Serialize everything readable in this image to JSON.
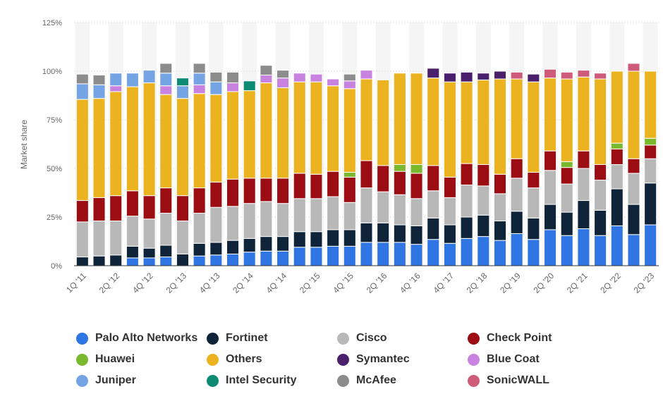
{
  "chart_data": {
    "type": "bar",
    "stacked": true,
    "ylabel": "Market share",
    "y_ticks": [
      "0%",
      "25%",
      "50%",
      "75%",
      "100%",
      "125%"
    ],
    "ylim": [
      0,
      125
    ],
    "grid": true,
    "legend_position": "bottom",
    "x_tick_labels": [
      "1Q '11",
      "2Q '12",
      "4Q '12",
      "2Q '13",
      "4Q '13",
      "2Q '14",
      "4Q '14",
      "2Q '15",
      "4Q '15",
      "2Q '16",
      "4Q '16",
      "4Q '17",
      "2Q '18",
      "2Q '19",
      "2Q '20",
      "2Q '21",
      "2Q '22",
      "2Q '23"
    ],
    "x_tick_positions": [
      0,
      2,
      4,
      6,
      8,
      10,
      12,
      14,
      16,
      18,
      20,
      22,
      24,
      26,
      28,
      30,
      32,
      34
    ],
    "bar_count": 35,
    "series": [
      {
        "name": "Palo Alto Networks",
        "color": "#2f76e4",
        "values": [
          0,
          0,
          0,
          4,
          4,
          4.5,
          0,
          5,
          5.5,
          6,
          7,
          7.5,
          7.5,
          9.5,
          9.5,
          10,
          10,
          12,
          12,
          12,
          11,
          13.5,
          11.5,
          14,
          15,
          13,
          16.5,
          13.5,
          18.5,
          15.5,
          19,
          15.5,
          20.5,
          16,
          21
        ]
      },
      {
        "name": "Fortinet",
        "color": "#0f2438",
        "values": [
          4.5,
          5,
          5.5,
          6,
          5,
          6,
          6,
          6.5,
          6.5,
          7,
          7,
          7.5,
          7.5,
          8,
          8,
          8.5,
          8.5,
          10,
          10,
          9,
          9.5,
          11,
          9.5,
          11,
          11,
          10,
          11.5,
          11,
          13,
          12,
          14.5,
          13,
          19,
          15.5,
          21.5
        ]
      },
      {
        "name": "Cisco",
        "color": "#b8b8b8",
        "values": [
          18,
          18,
          17.5,
          15.5,
          15,
          16.5,
          17,
          15.5,
          18,
          17.5,
          18,
          18,
          17,
          17,
          17,
          17,
          14,
          18,
          16,
          15.5,
          14,
          14,
          14,
          16.5,
          15,
          14,
          17,
          15.5,
          17.5,
          14.5,
          16.5,
          15.5,
          12.5,
          16,
          12.5
        ]
      },
      {
        "name": "Check Point",
        "color": "#9b0d12",
        "values": [
          11,
          12,
          13,
          13,
          12,
          13,
          13,
          13,
          13,
          14,
          13,
          12,
          13,
          13,
          12.5,
          13,
          13,
          14,
          13.5,
          12,
          13,
          13,
          10.5,
          11,
          11,
          10,
          10,
          8,
          10,
          8.5,
          9,
          8,
          8,
          7.5,
          7
        ]
      },
      {
        "name": "Huawei",
        "color": "#7ab82e",
        "values": [
          0,
          0,
          0,
          0,
          0,
          0,
          0,
          0,
          0,
          0,
          0,
          0,
          0,
          0,
          0,
          0,
          2.5,
          0,
          0,
          3.5,
          4.5,
          0,
          0,
          0,
          0,
          0,
          0,
          0,
          0,
          3,
          0,
          0,
          3,
          0,
          3.5
        ]
      },
      {
        "name": "Others",
        "color": "#ebb320",
        "values": [
          52,
          51,
          53.5,
          53.5,
          58,
          48,
          50,
          48.5,
          45,
          45,
          45,
          49,
          46.5,
          47,
          47.5,
          44,
          43,
          42,
          44,
          47,
          47,
          45,
          49,
          42,
          43.5,
          49,
          41,
          46.5,
          37.5,
          42.5,
          38,
          44,
          37,
          45,
          34.5
        ]
      },
      {
        "name": "Symantec",
        "color": "#4a1f6b",
        "values": [
          0,
          0,
          0,
          0,
          0,
          0,
          0,
          0,
          0,
          0,
          0,
          0,
          0,
          0,
          0,
          0,
          0,
          0,
          0,
          0,
          0,
          5,
          4.5,
          5,
          3.5,
          4,
          0,
          4,
          0,
          0,
          0,
          0,
          0,
          0,
          0
        ]
      },
      {
        "name": "Blue Coat",
        "color": "#c883e0",
        "values": [
          0,
          0,
          3,
          0,
          0,
          4.5,
          0,
          4.5,
          0,
          4.5,
          0,
          4,
          5,
          4.5,
          4,
          3.5,
          4,
          4.5,
          0,
          0,
          0,
          0,
          0,
          0,
          0,
          0,
          0,
          0,
          0,
          0,
          0,
          0,
          0,
          0,
          0
        ]
      },
      {
        "name": "Juniper",
        "color": "#74a4e4",
        "values": [
          8,
          7,
          6.5,
          7,
          6.5,
          6.5,
          6.5,
          6,
          6.5,
          0,
          0,
          0,
          0,
          0,
          0,
          0,
          0,
          0,
          0,
          0,
          0,
          0,
          0,
          0,
          0,
          0,
          0,
          0,
          0,
          0,
          0,
          0,
          0,
          0,
          0
        ]
      },
      {
        "name": "Intel Security",
        "color": "#0c8a72",
        "values": [
          0,
          0,
          0,
          0,
          0,
          0,
          4,
          0,
          0,
          0,
          5,
          0,
          0,
          0,
          0,
          0,
          0,
          0,
          0,
          0,
          0,
          0,
          0,
          0,
          0,
          0,
          0,
          0,
          0,
          0,
          0,
          0,
          0,
          0,
          0
        ]
      },
      {
        "name": "McAfee",
        "color": "#8c8c8c",
        "values": [
          5,
          5,
          0,
          0,
          0,
          5,
          0,
          5,
          5,
          5.5,
          0,
          5,
          4,
          0,
          0,
          0,
          3.5,
          0,
          0,
          0,
          0,
          0,
          0,
          0,
          0,
          0,
          0,
          0,
          0,
          0,
          0,
          0,
          0,
          0,
          0
        ]
      },
      {
        "name": "SonicWALL",
        "color": "#cf5b7a",
        "values": [
          0,
          0,
          0,
          0,
          0,
          0,
          0,
          0,
          0,
          0,
          0,
          0,
          0,
          0,
          0,
          0,
          0,
          0,
          0,
          0,
          0,
          0,
          0,
          0,
          0,
          0,
          3.5,
          0,
          4.5,
          3.5,
          3.5,
          3,
          0,
          4,
          0
        ]
      }
    ],
    "legend_rows": [
      [
        "Palo Alto Networks",
        "Fortinet",
        "Cisco",
        "Check Point"
      ],
      [
        "Huawei",
        "Others",
        "Symantec",
        "Blue Coat"
      ],
      [
        "Juniper",
        "Intel Security",
        "McAfee",
        "SonicWALL"
      ]
    ]
  }
}
